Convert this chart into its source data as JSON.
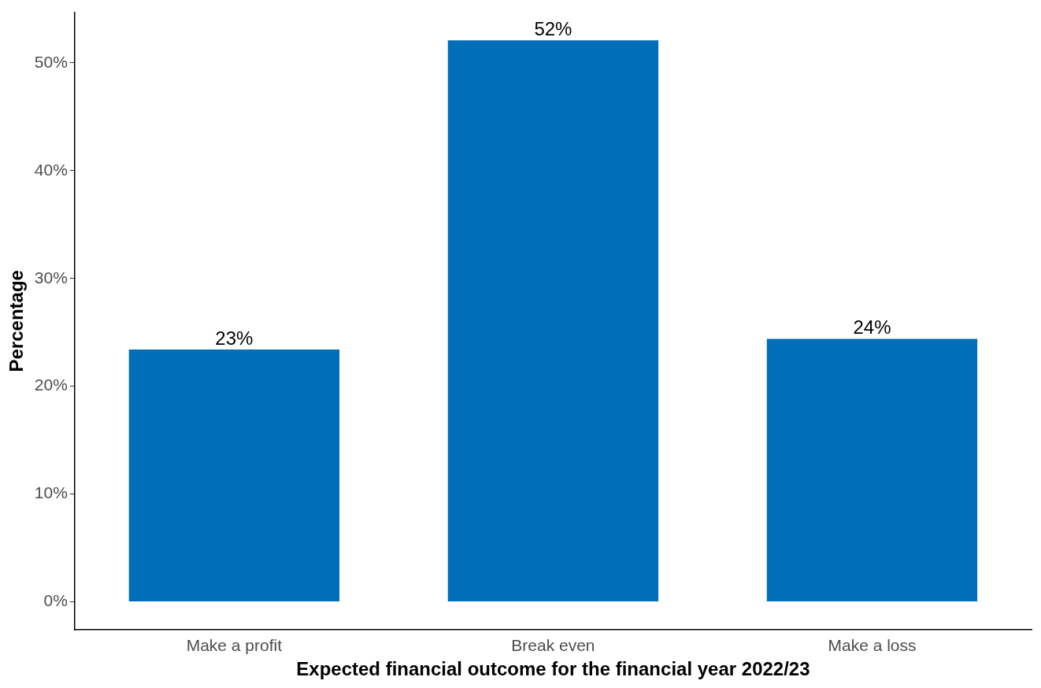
{
  "chart_data": {
    "type": "bar",
    "xlabel": "Expected financial outcome for the financial year 2022/23",
    "ylabel": "Percentage",
    "categories": [
      "Make a profit",
      "Break even",
      "Make a loss"
    ],
    "values": [
      23.4,
      52.1,
      24.4
    ],
    "color": "#006fba",
    "value_labels": [
      "23%",
      "52%",
      "24%"
    ],
    "ylim": [
      -2.6,
      54.7
    ],
    "yticks": [
      {
        "value": 0,
        "label": "0%"
      },
      {
        "value": 10,
        "label": "10%"
      },
      {
        "value": 20,
        "label": "20%"
      },
      {
        "value": 30,
        "label": "30%"
      },
      {
        "value": 40,
        "label": "40%"
      },
      {
        "value": 50,
        "label": "50%"
      }
    ],
    "grid": false,
    "legend": false
  }
}
